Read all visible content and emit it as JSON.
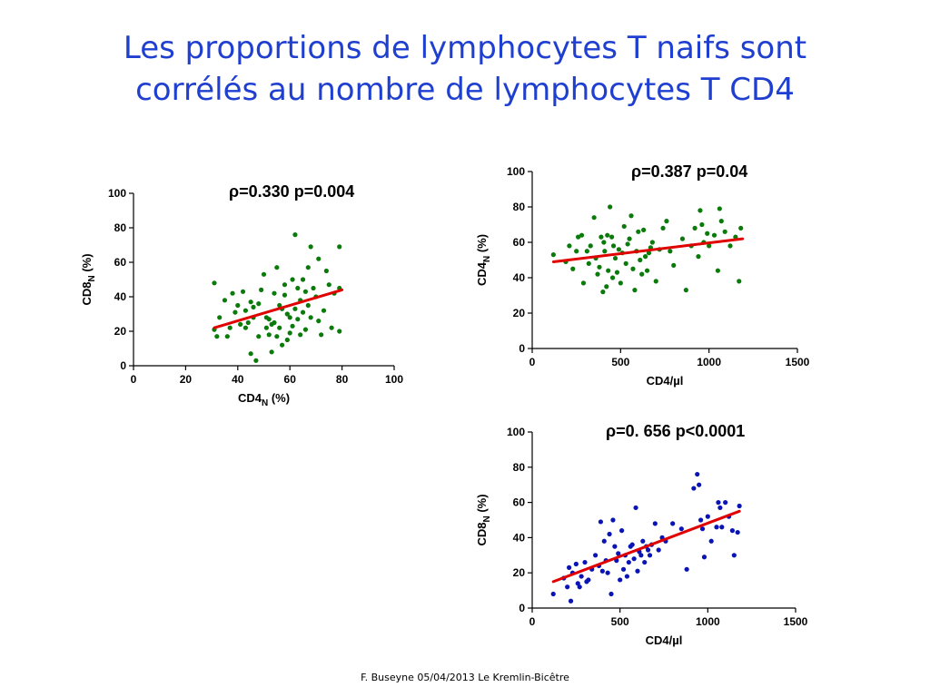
{
  "title_lines": [
    "Les proportions de lymphocytes T naifs sont",
    "corrélés au nombre de lymphocytes T CD4"
  ],
  "footer": "F. Buseyne  05/04/2013  Le Kremlin-Bicêtre",
  "colors": {
    "title": "#1f3fd0",
    "green": "#0a7a0a",
    "blue": "#0a14b4",
    "fit": "#e00000"
  },
  "chart_data": [
    {
      "type": "scatter",
      "id": "chart-cd8n-vs-cd4n",
      "stat": "ρ=0.330 p=0.004",
      "xlabel": {
        "main": "CD4",
        "sub": "N",
        "rest": " (%)"
      },
      "ylabel": {
        "main": "CD8",
        "sub": "N",
        "rest": " (%)"
      },
      "xlim": [
        0,
        100
      ],
      "ylim": [
        0,
        100
      ],
      "xticks": [
        0,
        20,
        40,
        60,
        80,
        100
      ],
      "yticks": [
        0,
        20,
        40,
        60,
        80,
        100
      ],
      "point_color": "#0a7a0a",
      "fit_line": [
        [
          31,
          22
        ],
        [
          80,
          44
        ]
      ],
      "points": [
        [
          31,
          48
        ],
        [
          31,
          21
        ],
        [
          32,
          17
        ],
        [
          33,
          28
        ],
        [
          35,
          38
        ],
        [
          36,
          17
        ],
        [
          37,
          22
        ],
        [
          38,
          42
        ],
        [
          39,
          31
        ],
        [
          40,
          35
        ],
        [
          41,
          24
        ],
        [
          42,
          43
        ],
        [
          43,
          32
        ],
        [
          43,
          22
        ],
        [
          44,
          25
        ],
        [
          45,
          37
        ],
        [
          45,
          7
        ],
        [
          46,
          34
        ],
        [
          46,
          28
        ],
        [
          47,
          3
        ],
        [
          48,
          17
        ],
        [
          48,
          36
        ],
        [
          49,
          44
        ],
        [
          50,
          53
        ],
        [
          51,
          22
        ],
        [
          51,
          28
        ],
        [
          52,
          18
        ],
        [
          52,
          27
        ],
        [
          53,
          24
        ],
        [
          53,
          8
        ],
        [
          54,
          42
        ],
        [
          54,
          25
        ],
        [
          55,
          57
        ],
        [
          55,
          17
        ],
        [
          56,
          35
        ],
        [
          56,
          22
        ],
        [
          57,
          33
        ],
        [
          57,
          12
        ],
        [
          58,
          47
        ],
        [
          58,
          41
        ],
        [
          59,
          30
        ],
        [
          59,
          15
        ],
        [
          60,
          28
        ],
        [
          60,
          19
        ],
        [
          61,
          50
        ],
        [
          61,
          23
        ],
        [
          62,
          76
        ],
        [
          62,
          33
        ],
        [
          63,
          45
        ],
        [
          63,
          27
        ],
        [
          64,
          18
        ],
        [
          64,
          38
        ],
        [
          65,
          50
        ],
        [
          65,
          31
        ],
        [
          66,
          43
        ],
        [
          66,
          21
        ],
        [
          67,
          57
        ],
        [
          67,
          35
        ],
        [
          68,
          69
        ],
        [
          68,
          28
        ],
        [
          69,
          45
        ],
        [
          70,
          40
        ],
        [
          71,
          62
        ],
        [
          71,
          26
        ],
        [
          72,
          18
        ],
        [
          73,
          32
        ],
        [
          74,
          55
        ],
        [
          75,
          47
        ],
        [
          76,
          22
        ],
        [
          77,
          42
        ],
        [
          79,
          69
        ],
        [
          79,
          45
        ],
        [
          79,
          20
        ]
      ]
    },
    {
      "type": "scatter",
      "id": "chart-cd4n-vs-cd4count",
      "stat": "ρ=0.387 p=0.04",
      "xlabel": {
        "main": "CD4/µl",
        "sub": "",
        "rest": ""
      },
      "ylabel": {
        "main": "CD4",
        "sub": "N",
        "rest": " (%)"
      },
      "xlim": [
        0,
        1500
      ],
      "ylim": [
        0,
        100
      ],
      "xticks": [
        0,
        500,
        1000,
        1500
      ],
      "yticks": [
        0,
        20,
        40,
        60,
        80,
        100
      ],
      "point_color": "#0a7a0a",
      "fit_line": [
        [
          120,
          49
        ],
        [
          1190,
          62
        ]
      ],
      "points": [
        [
          120,
          53
        ],
        [
          190,
          49
        ],
        [
          210,
          58
        ],
        [
          230,
          45
        ],
        [
          250,
          55
        ],
        [
          260,
          63
        ],
        [
          280,
          64
        ],
        [
          290,
          37
        ],
        [
          310,
          55
        ],
        [
          320,
          48
        ],
        [
          330,
          58
        ],
        [
          350,
          74
        ],
        [
          360,
          51
        ],
        [
          370,
          42
        ],
        [
          380,
          46
        ],
        [
          390,
          63
        ],
        [
          400,
          32
        ],
        [
          405,
          60
        ],
        [
          410,
          55
        ],
        [
          420,
          35
        ],
        [
          425,
          64
        ],
        [
          430,
          44
        ],
        [
          440,
          80
        ],
        [
          450,
          63
        ],
        [
          455,
          40
        ],
        [
          460,
          58
        ],
        [
          470,
          51
        ],
        [
          480,
          43
        ],
        [
          490,
          56
        ],
        [
          500,
          37
        ],
        [
          510,
          54
        ],
        [
          520,
          69
        ],
        [
          530,
          48
        ],
        [
          540,
          59
        ],
        [
          550,
          62
        ],
        [
          560,
          75
        ],
        [
          570,
          45
        ],
        [
          580,
          33
        ],
        [
          590,
          55
        ],
        [
          600,
          66
        ],
        [
          610,
          50
        ],
        [
          620,
          42
        ],
        [
          630,
          67
        ],
        [
          640,
          52
        ],
        [
          650,
          44
        ],
        [
          660,
          54
        ],
        [
          670,
          57
        ],
        [
          680,
          60
        ],
        [
          700,
          38
        ],
        [
          720,
          56
        ],
        [
          740,
          68
        ],
        [
          760,
          72
        ],
        [
          780,
          55
        ],
        [
          800,
          47
        ],
        [
          850,
          62
        ],
        [
          870,
          33
        ],
        [
          900,
          58
        ],
        [
          920,
          68
        ],
        [
          940,
          52
        ],
        [
          950,
          78
        ],
        [
          960,
          70
        ],
        [
          970,
          60
        ],
        [
          990,
          65
        ],
        [
          1000,
          58
        ],
        [
          1030,
          64
        ],
        [
          1050,
          44
        ],
        [
          1060,
          79
        ],
        [
          1070,
          72
        ],
        [
          1090,
          66
        ],
        [
          1120,
          58
        ],
        [
          1150,
          63
        ],
        [
          1170,
          38
        ],
        [
          1180,
          68
        ]
      ]
    },
    {
      "type": "scatter",
      "id": "chart-cd8n-vs-cd4count",
      "stat": "ρ=0. 656 p<0.0001",
      "xlabel": {
        "main": "CD4/µl",
        "sub": "",
        "rest": ""
      },
      "ylabel": {
        "main": "CD8",
        "sub": "N",
        "rest": " (%)"
      },
      "xlim": [
        0,
        1500
      ],
      "ylim": [
        0,
        100
      ],
      "xticks": [
        0,
        500,
        1000,
        1500
      ],
      "yticks": [
        0,
        20,
        40,
        60,
        80,
        100
      ],
      "point_color": "#0a14b4",
      "fit_line": [
        [
          120,
          15
        ],
        [
          1180,
          55
        ]
      ],
      "points": [
        [
          120,
          8
        ],
        [
          180,
          17
        ],
        [
          200,
          12
        ],
        [
          210,
          23
        ],
        [
          220,
          4
        ],
        [
          230,
          20
        ],
        [
          250,
          25
        ],
        [
          260,
          14
        ],
        [
          270,
          12
        ],
        [
          280,
          18
        ],
        [
          300,
          26
        ],
        [
          310,
          15
        ],
        [
          320,
          16
        ],
        [
          340,
          22
        ],
        [
          360,
          30
        ],
        [
          380,
          24
        ],
        [
          390,
          49
        ],
        [
          400,
          21
        ],
        [
          410,
          38
        ],
        [
          420,
          27
        ],
        [
          430,
          20
        ],
        [
          440,
          42
        ],
        [
          450,
          8
        ],
        [
          460,
          50
        ],
        [
          470,
          35
        ],
        [
          480,
          27
        ],
        [
          490,
          31
        ],
        [
          500,
          16
        ],
        [
          510,
          44
        ],
        [
          520,
          22
        ],
        [
          530,
          30
        ],
        [
          540,
          18
        ],
        [
          550,
          26
        ],
        [
          560,
          35
        ],
        [
          570,
          36
        ],
        [
          580,
          28
        ],
        [
          590,
          57
        ],
        [
          600,
          21
        ],
        [
          610,
          32
        ],
        [
          620,
          30
        ],
        [
          630,
          38
        ],
        [
          640,
          26
        ],
        [
          650,
          35
        ],
        [
          660,
          33
        ],
        [
          670,
          30
        ],
        [
          680,
          36
        ],
        [
          700,
          48
        ],
        [
          720,
          33
        ],
        [
          740,
          40
        ],
        [
          760,
          38
        ],
        [
          800,
          48
        ],
        [
          850,
          45
        ],
        [
          880,
          22
        ],
        [
          920,
          68
        ],
        [
          940,
          76
        ],
        [
          950,
          70
        ],
        [
          960,
          50
        ],
        [
          970,
          45
        ],
        [
          980,
          29
        ],
        [
          1000,
          52
        ],
        [
          1020,
          38
        ],
        [
          1050,
          46
        ],
        [
          1060,
          60
        ],
        [
          1070,
          57
        ],
        [
          1080,
          46
        ],
        [
          1100,
          60
        ],
        [
          1120,
          52
        ],
        [
          1140,
          44
        ],
        [
          1150,
          30
        ],
        [
          1170,
          43
        ],
        [
          1180,
          58
        ]
      ]
    }
  ]
}
